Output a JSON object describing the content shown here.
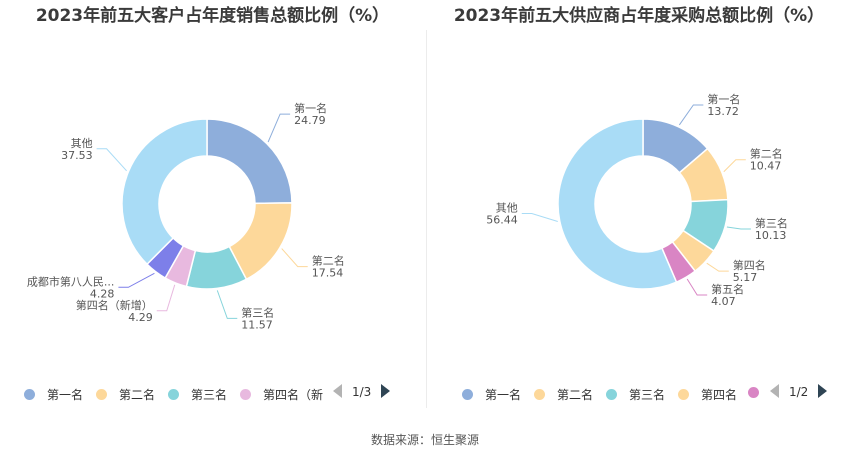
{
  "chart_data": [
    {
      "type": "pie",
      "title": "2023年前五大客户占年度销售总额比例（%）",
      "categories": [
        "第一名",
        "第二名",
        "第三名",
        "第四名（新增）",
        "成都市第八人民...",
        "其他"
      ],
      "values": [
        24.79,
        17.54,
        11.57,
        4.29,
        4.28,
        37.53
      ],
      "colors": [
        "#8eaedb",
        "#fdd89a",
        "#86d4db",
        "#e8b9df",
        "#7d7fe9",
        "#a9dcf6"
      ],
      "legend": {
        "position": "bottom",
        "items": [
          "第一名",
          "第二名",
          "第三名",
          "第四名（新"
        ],
        "page": "1/3"
      }
    },
    {
      "type": "pie",
      "title": "2023年前五大供应商占年度采购总额比例（%）",
      "categories": [
        "第一名",
        "第二名",
        "第三名",
        "第四名",
        "第五名",
        "其他"
      ],
      "values": [
        13.72,
        10.47,
        10.13,
        5.17,
        4.07,
        56.44
      ],
      "colors": [
        "#8eaedb",
        "#fdd89a",
        "#86d4db",
        "#fdd89a",
        "#d985c4",
        "#a9dcf6"
      ],
      "legend": {
        "position": "bottom",
        "items": [
          "第一名",
          "第二名",
          "第三名",
          "第四名",
          ""
        ],
        "page": "1/2"
      }
    }
  ],
  "source": "数据来源：恒生聚源"
}
